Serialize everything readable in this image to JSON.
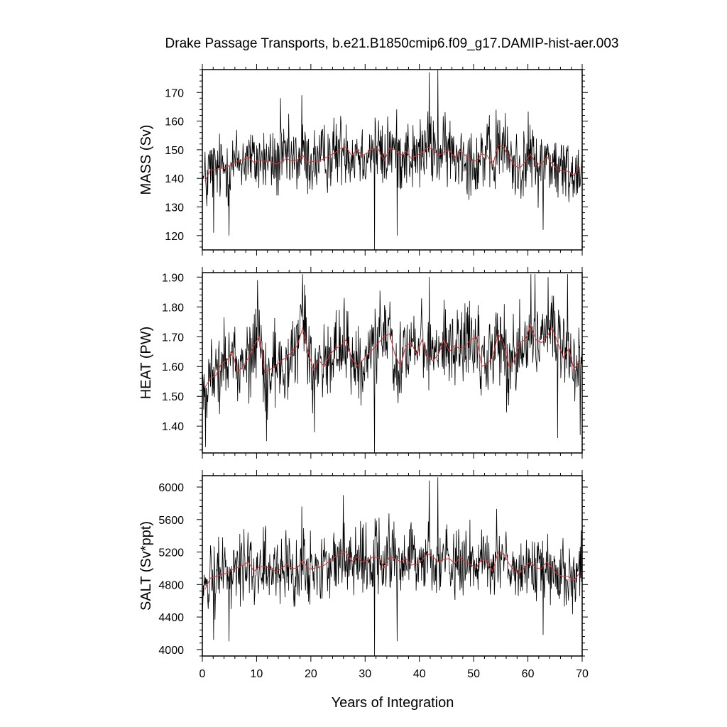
{
  "figure": {
    "title": "Drake Passage Transports, b.e21.B1850cmip6.f09_g17.DAMIP-hist-aer.003",
    "xlabel": "Years of Integration"
  },
  "chart_data": [
    {
      "type": "line",
      "ylabel": "MASS (Sv)",
      "xlim": [
        0,
        70
      ],
      "ylim": [
        115,
        178
      ],
      "x_ticks": [
        0,
        10,
        20,
        30,
        40,
        50,
        60,
        70
      ],
      "y_ticks": [
        120,
        130,
        140,
        150,
        160,
        170
      ],
      "y_tick_labels": [
        "120",
        "130",
        "140",
        "150",
        "160",
        "170"
      ],
      "grid": false,
      "series": [
        {
          "role": "monthly",
          "color": "#000000",
          "x_step": 0.0833,
          "x_start": 0,
          "base": 146.5,
          "amplitude": 10.5,
          "extremes": [
            [
              31.7,
              115
            ],
            [
              41.8,
              177
            ],
            [
              43.4,
              178
            ],
            [
              2.1,
              121
            ],
            [
              4.9,
              120
            ],
            [
              35.9,
              120
            ],
            [
              62.8,
              122
            ],
            [
              14.4,
              168
            ],
            [
              18.3,
              169
            ]
          ]
        },
        {
          "role": "annual_mean",
          "color": "#e03030",
          "x": [
            0.5,
            1.5,
            2.5,
            3.5,
            4.5,
            5.5,
            6.5,
            7.5,
            8.5,
            9.5,
            10.5,
            11.5,
            12.5,
            13.5,
            14.5,
            15.5,
            16.5,
            17.5,
            18.5,
            19.5,
            20.5,
            21.5,
            22.5,
            23.5,
            24.5,
            25.5,
            26.5,
            27.5,
            28.5,
            29.5,
            30.5,
            31.5,
            32.5,
            33.5,
            34.5,
            35.5,
            36.5,
            37.5,
            38.5,
            39.5,
            40.5,
            41.5,
            42.5,
            43.5,
            44.5,
            45.5,
            46.5,
            47.5,
            48.5,
            49.5,
            50.5,
            51.5,
            52.5,
            53.5,
            54.5,
            55.5,
            56.5,
            57.5,
            58.5,
            59.5,
            60.5,
            61.5,
            62.5,
            63.5,
            64.5,
            65.5,
            66.5,
            67.5,
            68.5,
            69.5
          ],
          "y": [
            139,
            143,
            143,
            143.5,
            144,
            145,
            146,
            146.5,
            147.5,
            145.5,
            146.5,
            146,
            146,
            145,
            145.5,
            147,
            146,
            146.5,
            148,
            145.5,
            146,
            146,
            147,
            148,
            149,
            150.5,
            151,
            148,
            150,
            148,
            149,
            150.5,
            150,
            146,
            150.5,
            150,
            148,
            149.5,
            147,
            148,
            149,
            151,
            150,
            148,
            149,
            150,
            147,
            149.5,
            148,
            146.5,
            146,
            148.5,
            148,
            144.5,
            151.5,
            151,
            147.5,
            144.5,
            143.5,
            146,
            148.5,
            145,
            145,
            147.5,
            145,
            143,
            142.5,
            142.5,
            141,
            144
          ]
        }
      ]
    },
    {
      "type": "line",
      "ylabel": "HEAT (PW)",
      "xlim": [
        0,
        70
      ],
      "ylim": [
        1.31,
        1.915
      ],
      "x_ticks": [
        0,
        10,
        20,
        30,
        40,
        50,
        60,
        70
      ],
      "y_ticks": [
        1.4,
        1.5,
        1.6,
        1.7,
        1.8,
        1.9
      ],
      "y_tick_labels": [
        "1.40",
        "1.50",
        "1.60",
        "1.70",
        "1.80",
        "1.90"
      ],
      "grid": false,
      "series": [
        {
          "role": "monthly",
          "color": "#000000",
          "x_step": 0.0833,
          "x_start": 0,
          "base": 1.635,
          "amplitude": 0.115,
          "extremes": [
            [
              31.7,
              1.31
            ],
            [
              0.6,
              1.33
            ],
            [
              18.5,
              1.91
            ],
            [
              60.6,
              1.91
            ],
            [
              61.3,
              1.91
            ],
            [
              63.7,
              1.9
            ],
            [
              67.3,
              1.91
            ],
            [
              41.8,
              1.9
            ],
            [
              10.2,
              1.89
            ],
            [
              11.8,
              1.35
            ],
            [
              20.7,
              1.38
            ],
            [
              65.5,
              1.36
            ],
            [
              69.6,
              1.37
            ]
          ]
        },
        {
          "role": "annual_mean",
          "color": "#e03030",
          "x": [
            0.5,
            1.5,
            2.5,
            3.5,
            4.5,
            5.5,
            6.5,
            7.5,
            8.5,
            9.5,
            10.5,
            11.5,
            12.5,
            13.5,
            14.5,
            15.5,
            16.5,
            17.5,
            18.5,
            19.5,
            20.5,
            21.5,
            22.5,
            23.5,
            24.5,
            25.5,
            26.5,
            27.5,
            28.5,
            29.5,
            30.5,
            31.5,
            32.5,
            33.5,
            34.5,
            35.5,
            36.5,
            37.5,
            38.5,
            39.5,
            40.5,
            41.5,
            42.5,
            43.5,
            44.5,
            45.5,
            46.5,
            47.5,
            48.5,
            49.5,
            50.5,
            51.5,
            52.5,
            53.5,
            54.5,
            55.5,
            56.5,
            57.5,
            58.5,
            59.5,
            60.5,
            61.5,
            62.5,
            63.5,
            64.5,
            65.5,
            66.5,
            67.5,
            68.5,
            69.5
          ],
          "y": [
            1.53,
            1.56,
            1.57,
            1.61,
            1.62,
            1.65,
            1.58,
            1.6,
            1.63,
            1.67,
            1.7,
            1.58,
            1.59,
            1.6,
            1.62,
            1.63,
            1.65,
            1.67,
            1.73,
            1.65,
            1.59,
            1.62,
            1.6,
            1.64,
            1.66,
            1.67,
            1.69,
            1.63,
            1.6,
            1.62,
            1.64,
            1.66,
            1.68,
            1.7,
            1.71,
            1.64,
            1.6,
            1.67,
            1.68,
            1.64,
            1.69,
            1.63,
            1.62,
            1.64,
            1.69,
            1.65,
            1.67,
            1.66,
            1.67,
            1.69,
            1.7,
            1.6,
            1.61,
            1.63,
            1.71,
            1.68,
            1.6,
            1.62,
            1.68,
            1.69,
            1.74,
            1.69,
            1.68,
            1.7,
            1.73,
            1.68,
            1.63,
            1.66,
            1.59,
            1.62
          ]
        }
      ]
    },
    {
      "type": "line",
      "ylabel": "SALT (Sv*ppt)",
      "xlim": [
        0,
        70
      ],
      "ylim": [
        3920,
        6140
      ],
      "x_ticks": [
        0,
        10,
        20,
        30,
        40,
        50,
        60,
        70
      ],
      "x_tick_labels": [
        "0",
        "10",
        "20",
        "30",
        "40",
        "50",
        "60",
        "70"
      ],
      "y_ticks": [
        4000,
        4400,
        4800,
        5200,
        5600,
        6000
      ],
      "y_tick_labels": [
        "4000",
        "4400",
        "4800",
        "5200",
        "5600",
        "6000"
      ],
      "grid": false,
      "series": [
        {
          "role": "monthly",
          "color": "#000000",
          "x_step": 0.0833,
          "x_start": 0,
          "base": 5040,
          "amplitude": 360,
          "extremes": [
            [
              31.7,
              3920
            ],
            [
              41.8,
              6080
            ],
            [
              43.4,
              6120
            ],
            [
              2.1,
              4120
            ],
            [
              4.9,
              4100
            ],
            [
              35.9,
              4100
            ],
            [
              62.8,
              4180
            ],
            [
              18.3,
              5760
            ],
            [
              26.0,
              5900
            ]
          ]
        },
        {
          "role": "annual_mean",
          "color": "#e03030",
          "x": [
            0.5,
            1.5,
            2.5,
            3.5,
            4.5,
            5.5,
            6.5,
            7.5,
            8.5,
            9.5,
            10.5,
            11.5,
            12.5,
            13.5,
            14.5,
            15.5,
            16.5,
            17.5,
            18.5,
            19.5,
            20.5,
            21.5,
            22.5,
            23.5,
            24.5,
            25.5,
            26.5,
            27.5,
            28.5,
            29.5,
            30.5,
            31.5,
            32.5,
            33.5,
            34.5,
            35.5,
            36.5,
            37.5,
            38.5,
            39.5,
            40.5,
            41.5,
            42.5,
            43.5,
            44.5,
            45.5,
            46.5,
            47.5,
            48.5,
            49.5,
            50.5,
            51.5,
            52.5,
            53.5,
            54.5,
            55.5,
            56.5,
            57.5,
            58.5,
            59.5,
            60.5,
            61.5,
            62.5,
            63.5,
            64.5,
            65.5,
            66.5,
            67.5,
            68.5,
            69.5
          ],
          "y": [
            4740,
            4880,
            4900,
            4920,
            4940,
            4980,
            5010,
            5040,
            5080,
            4960,
            5020,
            5020,
            5000,
            4960,
            4990,
            5050,
            5000,
            5000,
            5100,
            4990,
            5000,
            5010,
            5040,
            5090,
            5140,
            5180,
            5200,
            5080,
            5140,
            5080,
            5100,
            5140,
            5130,
            5000,
            5140,
            5120,
            5080,
            5120,
            5040,
            5050,
            5100,
            5180,
            5140,
            5080,
            5110,
            5120,
            5060,
            5130,
            5080,
            5040,
            5010,
            5110,
            5090,
            4960,
            5200,
            5180,
            5060,
            4960,
            4940,
            5020,
            5080,
            5000,
            5000,
            5080,
            5000,
            4920,
            4900,
            4900,
            4850,
            4940
          ]
        }
      ]
    }
  ]
}
